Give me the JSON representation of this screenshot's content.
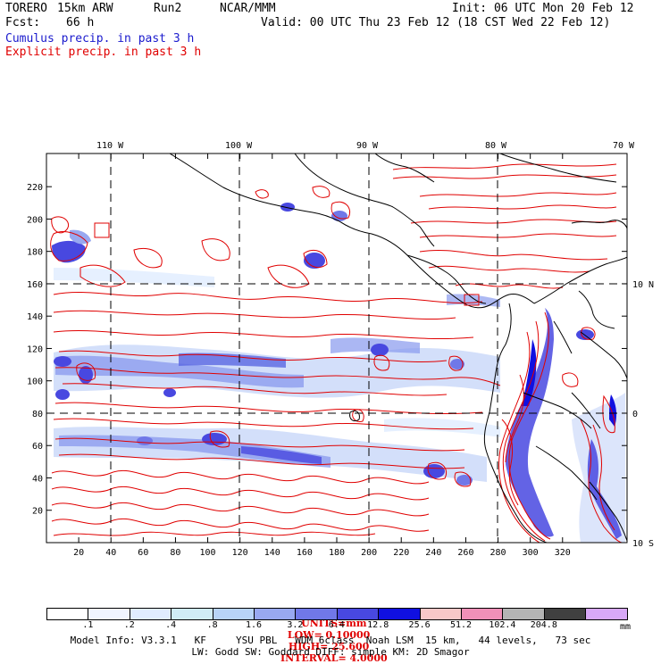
{
  "header": {
    "model_name": "TORERO",
    "resolution": "15km ARW",
    "run": "Run2",
    "org": "NCAR/MMM",
    "init": "Init: 06 UTC Mon 20 Feb 12",
    "fcst_label": "Fcst:",
    "fcst_value": "66 h",
    "valid": "Valid: 00 UTC Thu 23 Feb 12 (18 CST Wed 22 Feb 12)",
    "field1": "Cumulus precip. in past 3 h",
    "field2": "Explicit precip. in past 3 h"
  },
  "map": {
    "lon_labels": [
      "110 W",
      "100 W",
      "90 W",
      "80 W",
      "70 W"
    ],
    "lat_labels": [
      "10 N",
      "0",
      "10 S"
    ],
    "y_ticks": [
      "220",
      "200",
      "180",
      "160",
      "140",
      "120",
      "100",
      "80",
      "60",
      "40",
      "20"
    ],
    "x_ticks": [
      "20",
      "40",
      "60",
      "80",
      "100",
      "120",
      "140",
      "160",
      "180",
      "200",
      "220",
      "240",
      "260",
      "280",
      "300",
      "320"
    ],
    "colors": {
      "coast": "#000000",
      "contour": "#e00000",
      "grid": "#000000"
    }
  },
  "contours": {
    "label": "CONTOURS:",
    "units": "UNITS=mm",
    "low": "LOW= 0.10000",
    "high": "HIGH= 25.600",
    "interval": "INTERVAL= 4.0000"
  },
  "colorbar": {
    "colors": [
      "#ffffff",
      "#f0f4ff",
      "#e0ecff",
      "#d0ecf6",
      "#b8d4f8",
      "#98a8f0",
      "#7078e8",
      "#4848e0",
      "#1010e0",
      "#f8c8c8",
      "#f090b8",
      "#b4b4b4",
      "#404040",
      "#d8a8f8"
    ],
    "labels": [
      ".1",
      ".2",
      ".4",
      ".8",
      "1.6",
      "3.2",
      "6.4",
      "12.8",
      "25.6",
      "51.2",
      "102.4",
      "204.8"
    ],
    "unit": "mm"
  },
  "footer": {
    "line1": "Model Info: V3.3.1   KF     YSU PBL   WDM 6class  Noah LSM  15 km,   44 levels,   73 sec",
    "line2": "LW: Godd SW: Goddard DIFF: simple KM: 2D Smagor"
  }
}
